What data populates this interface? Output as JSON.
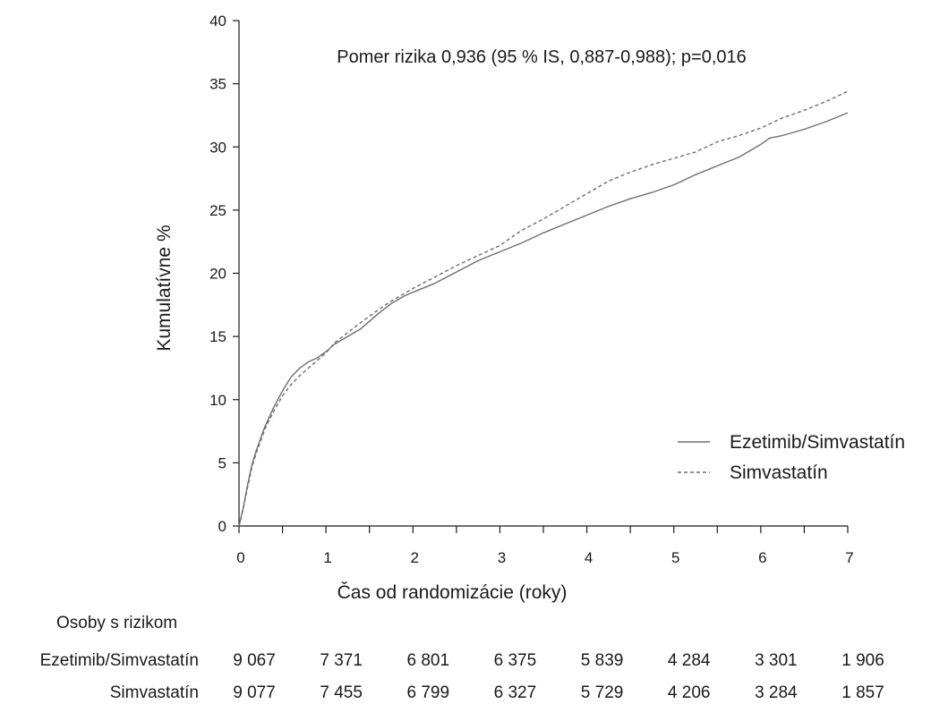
{
  "chart_data": {
    "type": "line",
    "title": "",
    "annotation": "Pomer rizika 0,936 (95 % IS, 0,887-0,988); p=0,016",
    "xlabel": "Čas od randomizácie (roky)",
    "ylabel": "Kumulatívne %",
    "xlim": [
      0,
      7
    ],
    "ylim": [
      0,
      40
    ],
    "x_ticks": [
      "0",
      "1",
      "2",
      "3",
      "4",
      "5",
      "6",
      "7"
    ],
    "y_ticks": [
      "0",
      "5",
      "10",
      "15",
      "20",
      "25",
      "30",
      "35",
      "40"
    ],
    "grid": false,
    "legend_position": "bottom-right",
    "series": [
      {
        "name": "Ezetimib/Simvastatín",
        "line_style": "solid",
        "color": "#6e6e6e",
        "x": [
          0,
          0.05,
          0.1,
          0.15,
          0.2,
          0.3,
          0.4,
          0.5,
          0.6,
          0.7,
          0.8,
          0.9,
          1.0,
          1.1,
          1.25,
          1.4,
          1.5,
          1.6,
          1.75,
          1.9,
          2.0,
          2.25,
          2.5,
          2.75,
          3.0,
          3.25,
          3.5,
          3.75,
          4.0,
          4.25,
          4.5,
          4.75,
          5.0,
          5.25,
          5.5,
          5.75,
          6.0,
          6.1,
          6.25,
          6.5,
          6.75,
          7.0
        ],
        "values": [
          0,
          1.5,
          3.3,
          4.9,
          6.0,
          7.9,
          9.4,
          10.7,
          11.8,
          12.5,
          13.0,
          13.3,
          13.8,
          14.4,
          15.0,
          15.6,
          16.2,
          16.8,
          17.6,
          18.2,
          18.5,
          19.2,
          20.1,
          21.0,
          21.7,
          22.4,
          23.2,
          23.9,
          24.6,
          25.3,
          25.9,
          26.4,
          27.0,
          27.8,
          28.5,
          29.2,
          30.2,
          30.7,
          30.9,
          31.4,
          32.0,
          32.7
        ]
      },
      {
        "name": "Simvastatín",
        "line_style": "dashed",
        "color": "#6e6e6e",
        "x": [
          0,
          0.05,
          0.1,
          0.15,
          0.2,
          0.3,
          0.4,
          0.5,
          0.6,
          0.7,
          0.8,
          0.9,
          1.0,
          1.1,
          1.25,
          1.4,
          1.5,
          1.6,
          1.75,
          1.9,
          2.0,
          2.25,
          2.5,
          2.75,
          3.0,
          3.25,
          3.5,
          3.75,
          4.0,
          4.25,
          4.5,
          4.75,
          5.0,
          5.25,
          5.5,
          5.75,
          6.0,
          6.25,
          6.5,
          6.75,
          7.0
        ],
        "values": [
          0,
          1.4,
          3.1,
          4.7,
          5.8,
          7.7,
          9.1,
          10.3,
          11.2,
          11.9,
          12.5,
          13.1,
          13.7,
          14.5,
          15.3,
          16.1,
          16.6,
          17.1,
          17.8,
          18.4,
          18.8,
          19.7,
          20.6,
          21.4,
          22.2,
          23.4,
          24.3,
          25.3,
          26.3,
          27.3,
          28.0,
          28.6,
          29.1,
          29.6,
          30.4,
          30.9,
          31.5,
          32.3,
          32.9,
          33.6,
          34.4
        ]
      }
    ],
    "numbers_at_risk": {
      "header": "Osoby s rizikom",
      "rows": [
        {
          "label": "Ezetimib/Simvastatín",
          "values": [
            "9 067",
            "7 371",
            "6 801",
            "6 375",
            "5 839",
            "4 284",
            "3 301",
            "1 906"
          ]
        },
        {
          "label": "Simvastatín",
          "values": [
            "9 077",
            "7 455",
            "6 799",
            "6 327",
            "5 729",
            "4 206",
            "3 284",
            "1 857"
          ]
        }
      ]
    }
  }
}
